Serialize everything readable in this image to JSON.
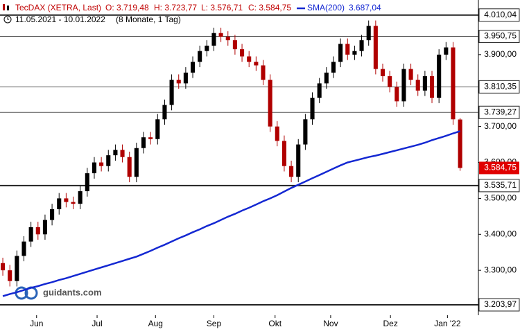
{
  "chart_data": {
    "type": "candlestick",
    "header": {
      "instrument": "TecDAX (XETRA, Last)",
      "ohlc": [
        "O: 3.719,48",
        "H: 3.723,77",
        "L: 3.576,71",
        "C: 3.584,75"
      ],
      "sma_value": "3.687,04",
      "period": "11.05.2021 - 10.01.2022",
      "period_note": "(8 Monate, 1 Tag)"
    },
    "watermark": "guidants.com",
    "up_color": "#000000",
    "down_color": "#b00000",
    "open": [
      3320,
      3300,
      3270,
      3340,
      3380,
      3420,
      3400,
      3440,
      3470,
      3500,
      3490,
      3485,
      3520,
      3570,
      3600,
      3590,
      3620,
      3635,
      3615,
      3560,
      3640,
      3670,
      3665,
      3720,
      3760,
      3830,
      3820,
      3850,
      3880,
      3910,
      3925,
      3960,
      3950,
      3940,
      3915,
      3895,
      3880,
      3870,
      3830,
      3700,
      3660,
      3590,
      3560,
      3650,
      3720,
      3780,
      3820,
      3850,
      3880,
      3930,
      3900,
      3910,
      3940,
      3980,
      3860,
      3840,
      3810,
      3770,
      3860,
      3830,
      3800,
      3840,
      3780,
      3900,
      3920,
      3719.48
    ],
    "high": [
      3335,
      3315,
      3355,
      3395,
      3435,
      3435,
      3455,
      3485,
      3515,
      3515,
      3505,
      3535,
      3585,
      3615,
      3615,
      3635,
      3650,
      3650,
      3630,
      3655,
      3685,
      3685,
      3735,
      3775,
      3845,
      3845,
      3865,
      3895,
      3925,
      3940,
      3975,
      3975,
      3965,
      3955,
      3930,
      3910,
      3895,
      3885,
      3845,
      3715,
      3675,
      3605,
      3665,
      3735,
      3795,
      3835,
      3865,
      3895,
      3945,
      3945,
      3925,
      3955,
      3995,
      3995,
      3875,
      3855,
      3825,
      3875,
      3875,
      3845,
      3855,
      3855,
      3915,
      3935,
      3935,
      3723.77
    ],
    "low": [
      3285,
      3255,
      3255,
      3325,
      3365,
      3385,
      3385,
      3425,
      3455,
      3475,
      3470,
      3470,
      3505,
      3555,
      3575,
      3575,
      3605,
      3600,
      3545,
      3545,
      3625,
      3650,
      3650,
      3705,
      3745,
      3805,
      3805,
      3835,
      3865,
      3895,
      3910,
      3935,
      3925,
      3900,
      3880,
      3865,
      3855,
      3815,
      3685,
      3645,
      3575,
      3545,
      3545,
      3635,
      3705,
      3765,
      3805,
      3835,
      3865,
      3885,
      3885,
      3895,
      3925,
      3845,
      3825,
      3795,
      3755,
      3755,
      3815,
      3785,
      3785,
      3765,
      3765,
      3885,
      3705,
      3576.71
    ],
    "close": [
      3300,
      3270,
      3340,
      3380,
      3420,
      3400,
      3440,
      3470,
      3500,
      3490,
      3485,
      3520,
      3570,
      3600,
      3590,
      3620,
      3635,
      3615,
      3560,
      3640,
      3670,
      3665,
      3720,
      3760,
      3830,
      3820,
      3850,
      3880,
      3910,
      3925,
      3960,
      3950,
      3940,
      3915,
      3895,
      3880,
      3870,
      3830,
      3700,
      3660,
      3590,
      3560,
      3650,
      3720,
      3780,
      3820,
      3850,
      3880,
      3930,
      3900,
      3910,
      3940,
      3980,
      3860,
      3840,
      3810,
      3770,
      3860,
      3830,
      3800,
      3840,
      3780,
      3900,
      3920,
      3720,
      3584.75
    ],
    "series": [
      {
        "name": "SMA(200)",
        "color": "#1428d2",
        "values": [
          3228,
          3234,
          3239,
          3245,
          3251,
          3256,
          3262,
          3267,
          3273,
          3278,
          3284,
          3290,
          3296,
          3302,
          3308,
          3314,
          3320,
          3326,
          3332,
          3338,
          3346,
          3354,
          3363,
          3371,
          3380,
          3389,
          3397,
          3406,
          3414,
          3423,
          3431,
          3440,
          3449,
          3457,
          3466,
          3474,
          3483,
          3492,
          3500,
          3509,
          3519,
          3529,
          3538,
          3547,
          3556,
          3565,
          3574,
          3583,
          3592,
          3600,
          3605,
          3610,
          3615,
          3619,
          3624,
          3629,
          3634,
          3639,
          3644,
          3649,
          3655,
          3662,
          3668,
          3674,
          3681,
          3687.04
        ]
      }
    ],
    "xlim": [
      -0.4,
      67.6
    ],
    "xticks": [
      {
        "value": 4.8,
        "label": "Jun"
      },
      {
        "value": 13.4,
        "label": "Jul"
      },
      {
        "value": 21.7,
        "label": "Aug"
      },
      {
        "value": 30.0,
        "label": "Sep"
      },
      {
        "value": 38.7,
        "label": "Okt"
      },
      {
        "value": 46.6,
        "label": "Nov"
      },
      {
        "value": 55.1,
        "label": "Dez"
      },
      {
        "value": 63.2,
        "label": "Jan '22"
      }
    ],
    "ylim": [
      3175,
      4052
    ],
    "yticks": [
      {
        "value": 3300,
        "label": "3.300,00"
      },
      {
        "value": 3400,
        "label": "3.400,00"
      },
      {
        "value": 3500,
        "label": "3.500,00"
      },
      {
        "value": 3600,
        "label": "3.600,00"
      },
      {
        "value": 3700,
        "label": "3.700,00"
      },
      {
        "value": 3900,
        "label": "3.900,00"
      }
    ],
    "levels": [
      {
        "value": 4010.04,
        "label": "4.010,04",
        "bold": true
      },
      {
        "value": 3950.75,
        "label": "3.950,75",
        "bold": false
      },
      {
        "value": 3810.35,
        "label": "3.810,35",
        "bold": false
      },
      {
        "value": 3739.27,
        "label": "3.739,27",
        "bold": false
      },
      {
        "value": 3535.71,
        "label": "3.535,71",
        "bold": true
      },
      {
        "value": 3203.97,
        "label": "3.203,97",
        "bold": true
      }
    ],
    "last_price": {
      "value": 3584.75,
      "label": "3.584,75",
      "color": "#e00000"
    }
  }
}
